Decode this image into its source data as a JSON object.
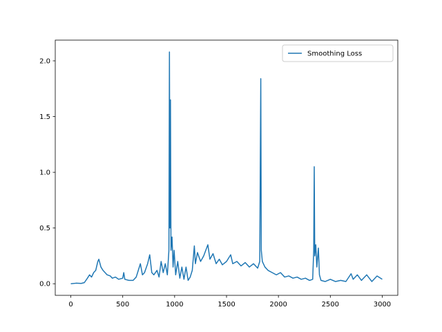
{
  "chart_data": {
    "type": "line",
    "x": [
      0,
      50,
      100,
      130,
      160,
      180,
      200,
      220,
      240,
      260,
      270,
      290,
      310,
      330,
      350,
      380,
      400,
      430,
      460,
      500,
      510,
      520,
      560,
      600,
      630,
      650,
      670,
      690,
      710,
      740,
      760,
      780,
      800,
      830,
      850,
      870,
      890,
      910,
      930,
      945,
      950,
      955,
      960,
      965,
      975,
      985,
      995,
      1010,
      1030,
      1050,
      1070,
      1090,
      1110,
      1130,
      1150,
      1170,
      1190,
      1200,
      1220,
      1250,
      1280,
      1300,
      1320,
      1340,
      1370,
      1400,
      1430,
      1460,
      1500,
      1540,
      1560,
      1600,
      1640,
      1680,
      1720,
      1760,
      1800,
      1820,
      1830,
      1835,
      1845,
      1870,
      1900,
      1940,
      1980,
      2020,
      2060,
      2100,
      2140,
      2180,
      2220,
      2260,
      2300,
      2330,
      2340,
      2345,
      2350,
      2360,
      2370,
      2385,
      2395,
      2410,
      2450,
      2500,
      2550,
      2600,
      2650,
      2700,
      2720,
      2760,
      2800,
      2850,
      2900,
      2950,
      3000
    ],
    "series": [
      {
        "name": "Smoothing Loss",
        "color": "#1f77b4",
        "values": [
          0.0,
          0.005,
          0.003,
          0.01,
          0.05,
          0.08,
          0.06,
          0.1,
          0.12,
          0.2,
          0.22,
          0.15,
          0.12,
          0.1,
          0.08,
          0.07,
          0.05,
          0.06,
          0.04,
          0.05,
          0.1,
          0.04,
          0.03,
          0.03,
          0.06,
          0.12,
          0.18,
          0.08,
          0.1,
          0.18,
          0.26,
          0.1,
          0.08,
          0.12,
          0.06,
          0.2,
          0.1,
          0.18,
          0.08,
          0.3,
          2.08,
          0.5,
          1.65,
          0.3,
          0.42,
          0.15,
          0.3,
          0.08,
          0.2,
          0.05,
          0.15,
          0.04,
          0.15,
          0.03,
          0.06,
          0.12,
          0.34,
          0.18,
          0.28,
          0.2,
          0.25,
          0.3,
          0.35,
          0.22,
          0.27,
          0.18,
          0.22,
          0.17,
          0.2,
          0.26,
          0.18,
          0.2,
          0.16,
          0.19,
          0.15,
          0.18,
          0.14,
          0.2,
          1.84,
          0.3,
          0.2,
          0.15,
          0.12,
          0.1,
          0.08,
          0.1,
          0.06,
          0.07,
          0.05,
          0.06,
          0.04,
          0.05,
          0.03,
          0.04,
          0.3,
          1.05,
          0.25,
          0.35,
          0.15,
          0.32,
          0.08,
          0.03,
          0.02,
          0.04,
          0.02,
          0.03,
          0.02,
          0.09,
          0.04,
          0.08,
          0.03,
          0.08,
          0.02,
          0.07,
          0.04
        ]
      }
    ],
    "xlim": [
      -150,
      3150
    ],
    "ylim": [
      -0.104,
      2.186
    ],
    "xticks": [
      0,
      500,
      1000,
      1500,
      2000,
      2500,
      3000
    ],
    "yticks": [
      {
        "value": 0,
        "label": "0.0"
      },
      0.5,
      {
        "value": 1,
        "label": "1.0"
      },
      1.5,
      {
        "value": 2,
        "label": "2.0"
      }
    ],
    "legend": "upper right"
  }
}
